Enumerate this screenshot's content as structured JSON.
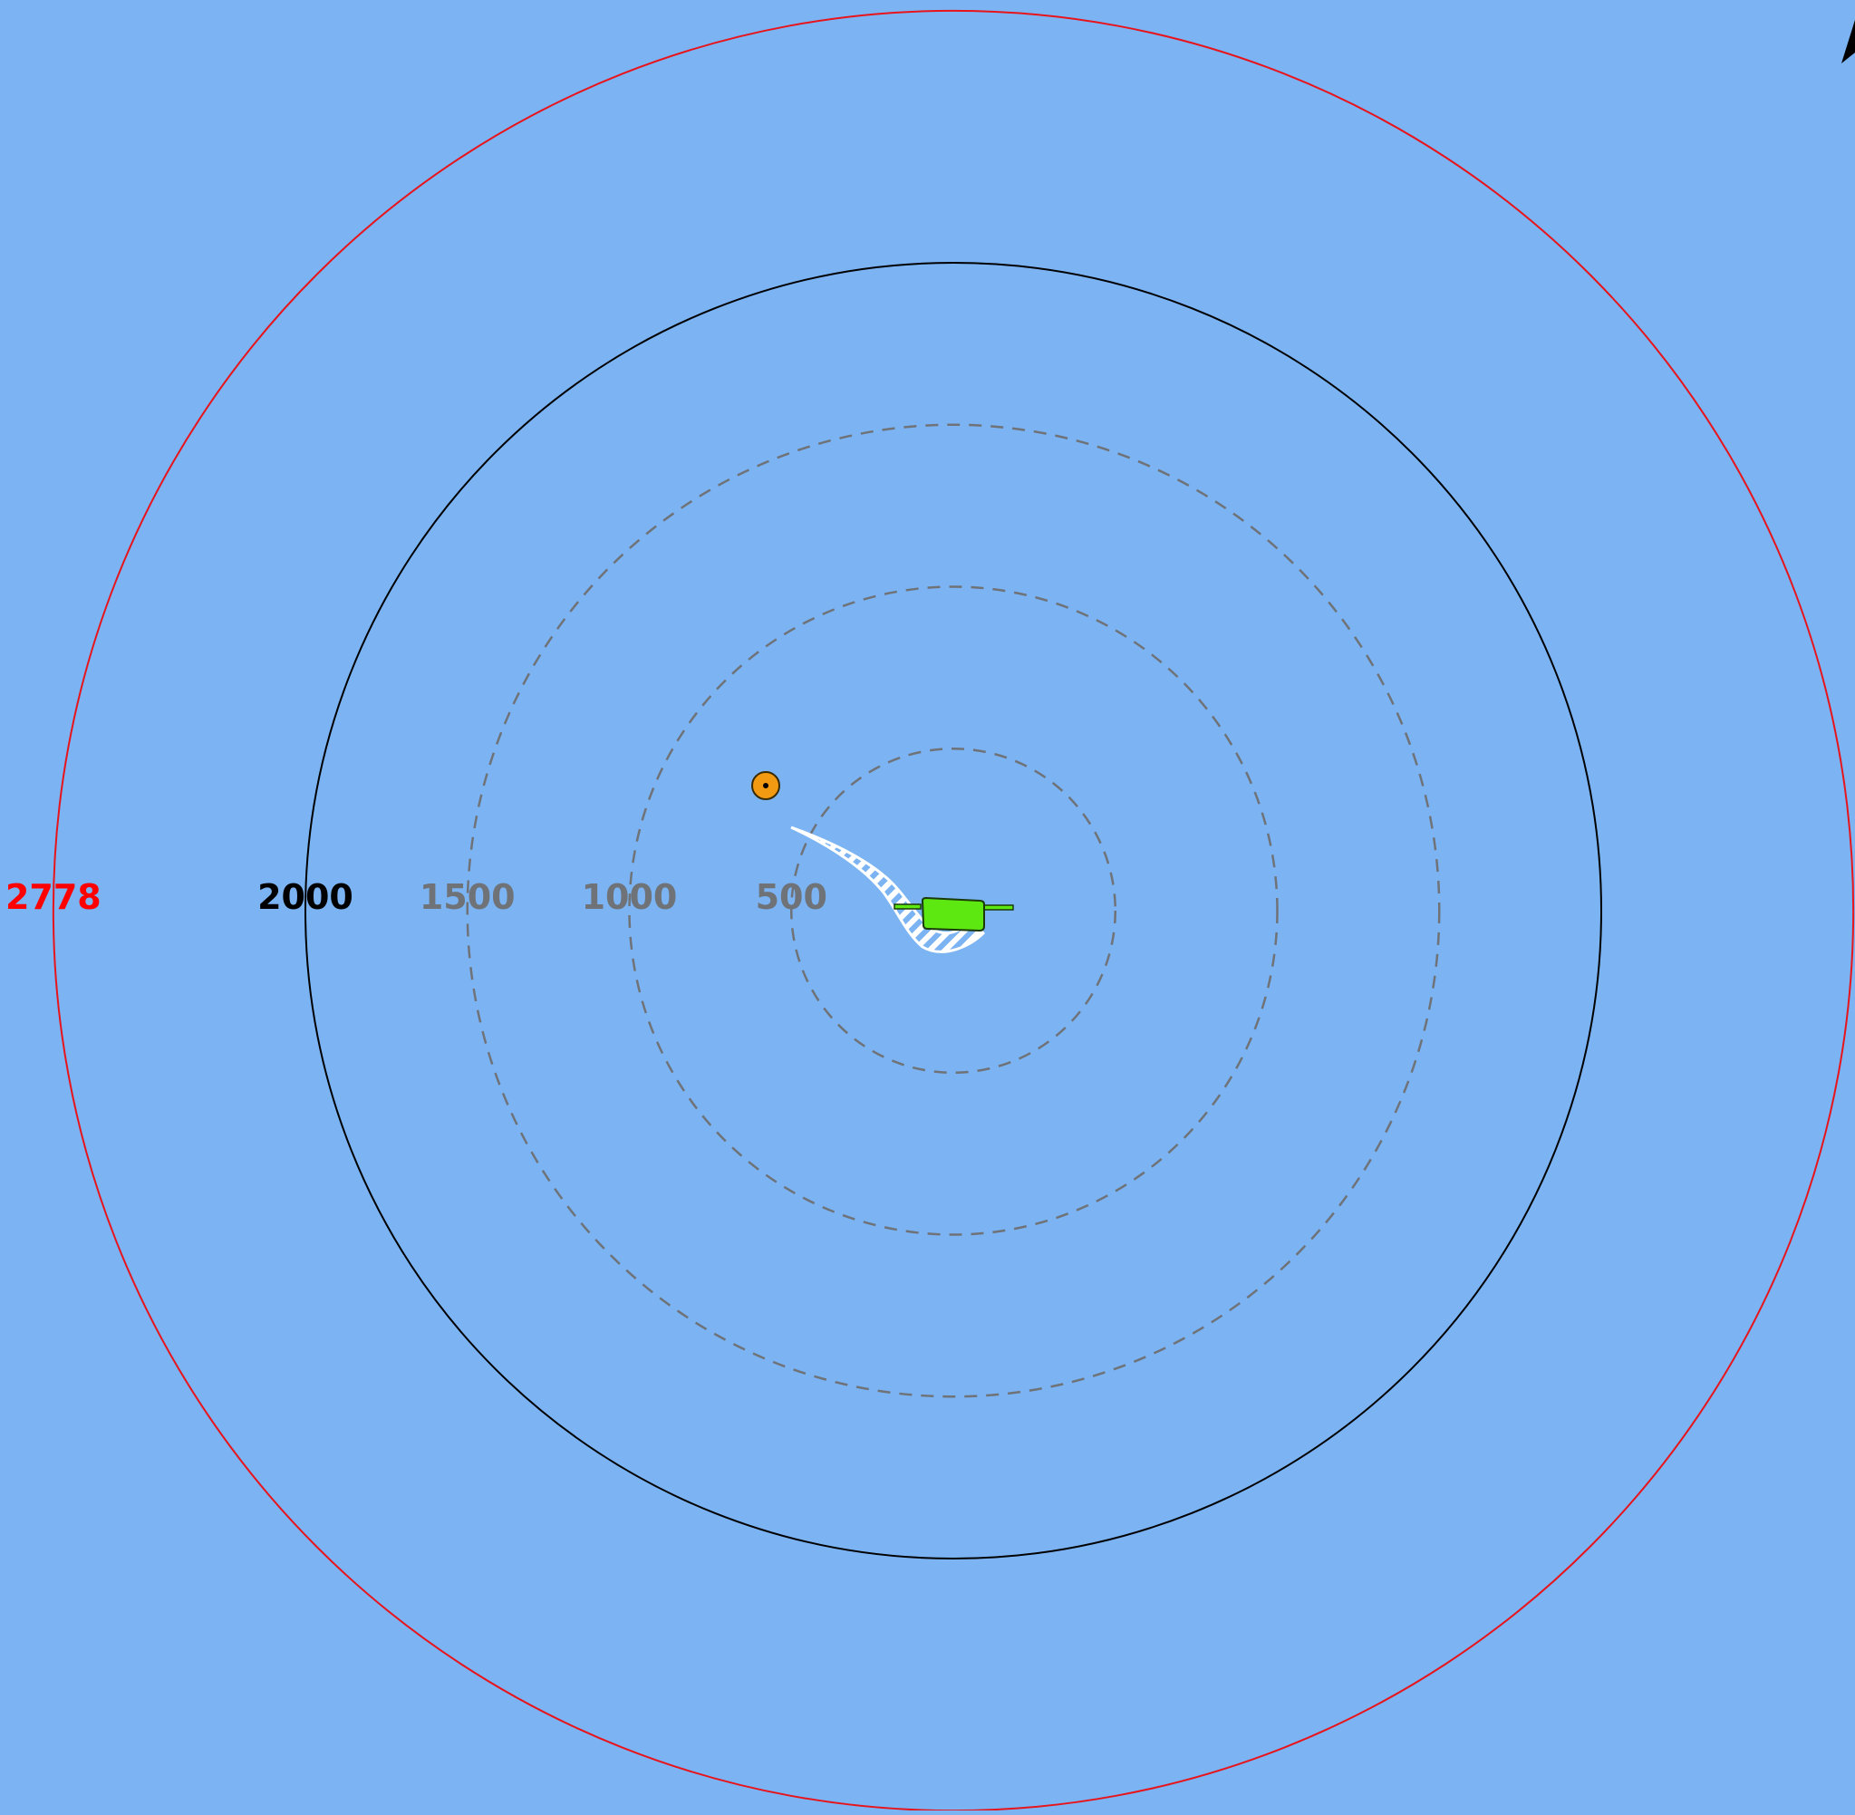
{
  "colors": {
    "background": "#7bb3f3",
    "limit_ring": "#e8141b",
    "main_ring": "#000000",
    "minor_ring": "#6f7378",
    "buoy_fill": "#f29a12",
    "vessel_fill": "#5ee811",
    "wake_fill": "#ffffff",
    "limit_label": "#ff0000",
    "main_label": "#000000",
    "minor_label": "#6f7378"
  },
  "range_rings": [
    {
      "value": 500,
      "label": "500",
      "style": "dashed",
      "color_key": "minor"
    },
    {
      "value": 1000,
      "label": "1000",
      "style": "dashed",
      "color_key": "minor"
    },
    {
      "value": 1500,
      "label": "1500",
      "style": "dashed",
      "color_key": "minor"
    },
    {
      "value": 2000,
      "label": "2000",
      "style": "solid",
      "color_key": "main"
    },
    {
      "value": 2778,
      "label": "2778",
      "style": "solid",
      "color_key": "limit"
    }
  ],
  "markers": {
    "buoy": {
      "icon": "buoy-icon"
    },
    "vessel": {
      "icon": "vessel-icon"
    },
    "north_arrow": {
      "icon": "north-arrow-icon"
    }
  }
}
